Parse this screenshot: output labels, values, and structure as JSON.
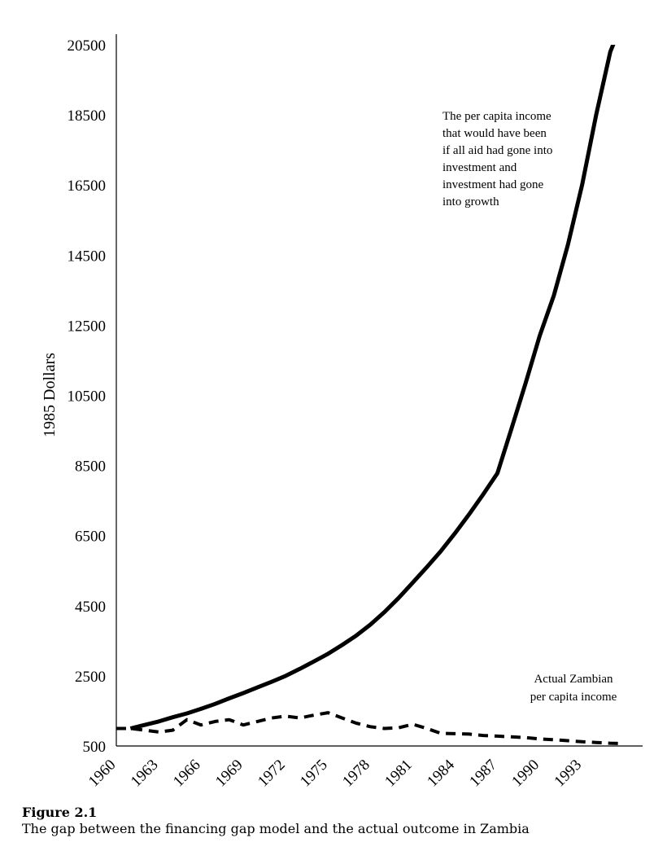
{
  "figure": {
    "label": "Figure 2.1",
    "caption": "The gap between the financing gap model and the actual outcome in Zambia"
  },
  "chart_data": {
    "type": "line",
    "ylabel": "1985 Dollars",
    "xlabel": "",
    "title": "",
    "ylim": [
      500,
      20500
    ],
    "xlim": [
      1960,
      1997
    ],
    "yticks": [
      500,
      2500,
      4500,
      6500,
      8500,
      10500,
      12500,
      14500,
      16500,
      18500,
      20500
    ],
    "xticks": [
      1960,
      1963,
      1966,
      1969,
      1972,
      1975,
      1978,
      1981,
      1984,
      1987,
      1990,
      1993
    ],
    "grid": false,
    "legend": "none",
    "series": [
      {
        "style": "solid",
        "annotation": [
          "The per capita income",
          "that would have been",
          "if all aid had gone into",
          "investment and",
          "investment had gone",
          "into growth"
        ],
        "x": [
          1961,
          1962,
          1963,
          1964,
          1965,
          1966,
          1967,
          1968,
          1969,
          1970,
          1971,
          1972,
          1973,
          1974,
          1975,
          1976,
          1977,
          1978,
          1979,
          1980,
          1981,
          1982,
          1983,
          1984,
          1985,
          1986,
          1987,
          1988,
          1989,
          1990,
          1991,
          1992,
          1993,
          1994,
          1995,
          1996
        ],
        "values": [
          1000,
          1100,
          1200,
          1320,
          1430,
          1560,
          1700,
          1860,
          2010,
          2170,
          2330,
          2500,
          2700,
          2910,
          3130,
          3380,
          3650,
          3960,
          4320,
          4720,
          5160,
          5600,
          6060,
          6570,
          7110,
          7680,
          8280,
          9550,
          10850,
          12200,
          13350,
          14800,
          16500,
          18500,
          20300,
          22500
        ]
      },
      {
        "style": "dashed",
        "annotation": [
          "Actual Zambian",
          "per capita income"
        ],
        "x": [
          1960,
          1961,
          1962,
          1963,
          1964,
          1965,
          1966,
          1967,
          1968,
          1969,
          1970,
          1971,
          1972,
          1973,
          1974,
          1975,
          1976,
          1977,
          1978,
          1979,
          1980,
          1981,
          1982,
          1983,
          1984,
          1985,
          1986,
          1987,
          1988,
          1989,
          1990,
          1991,
          1992,
          1993,
          1994,
          1995,
          1996
        ],
        "values": [
          1000,
          1000,
          950,
          900,
          950,
          1250,
          1100,
          1200,
          1250,
          1100,
          1200,
          1300,
          1350,
          1300,
          1380,
          1450,
          1300,
          1150,
          1050,
          1000,
          1020,
          1120,
          1000,
          860,
          850,
          840,
          800,
          780,
          760,
          740,
          700,
          680,
          650,
          620,
          600,
          580,
          570
        ]
      }
    ]
  }
}
